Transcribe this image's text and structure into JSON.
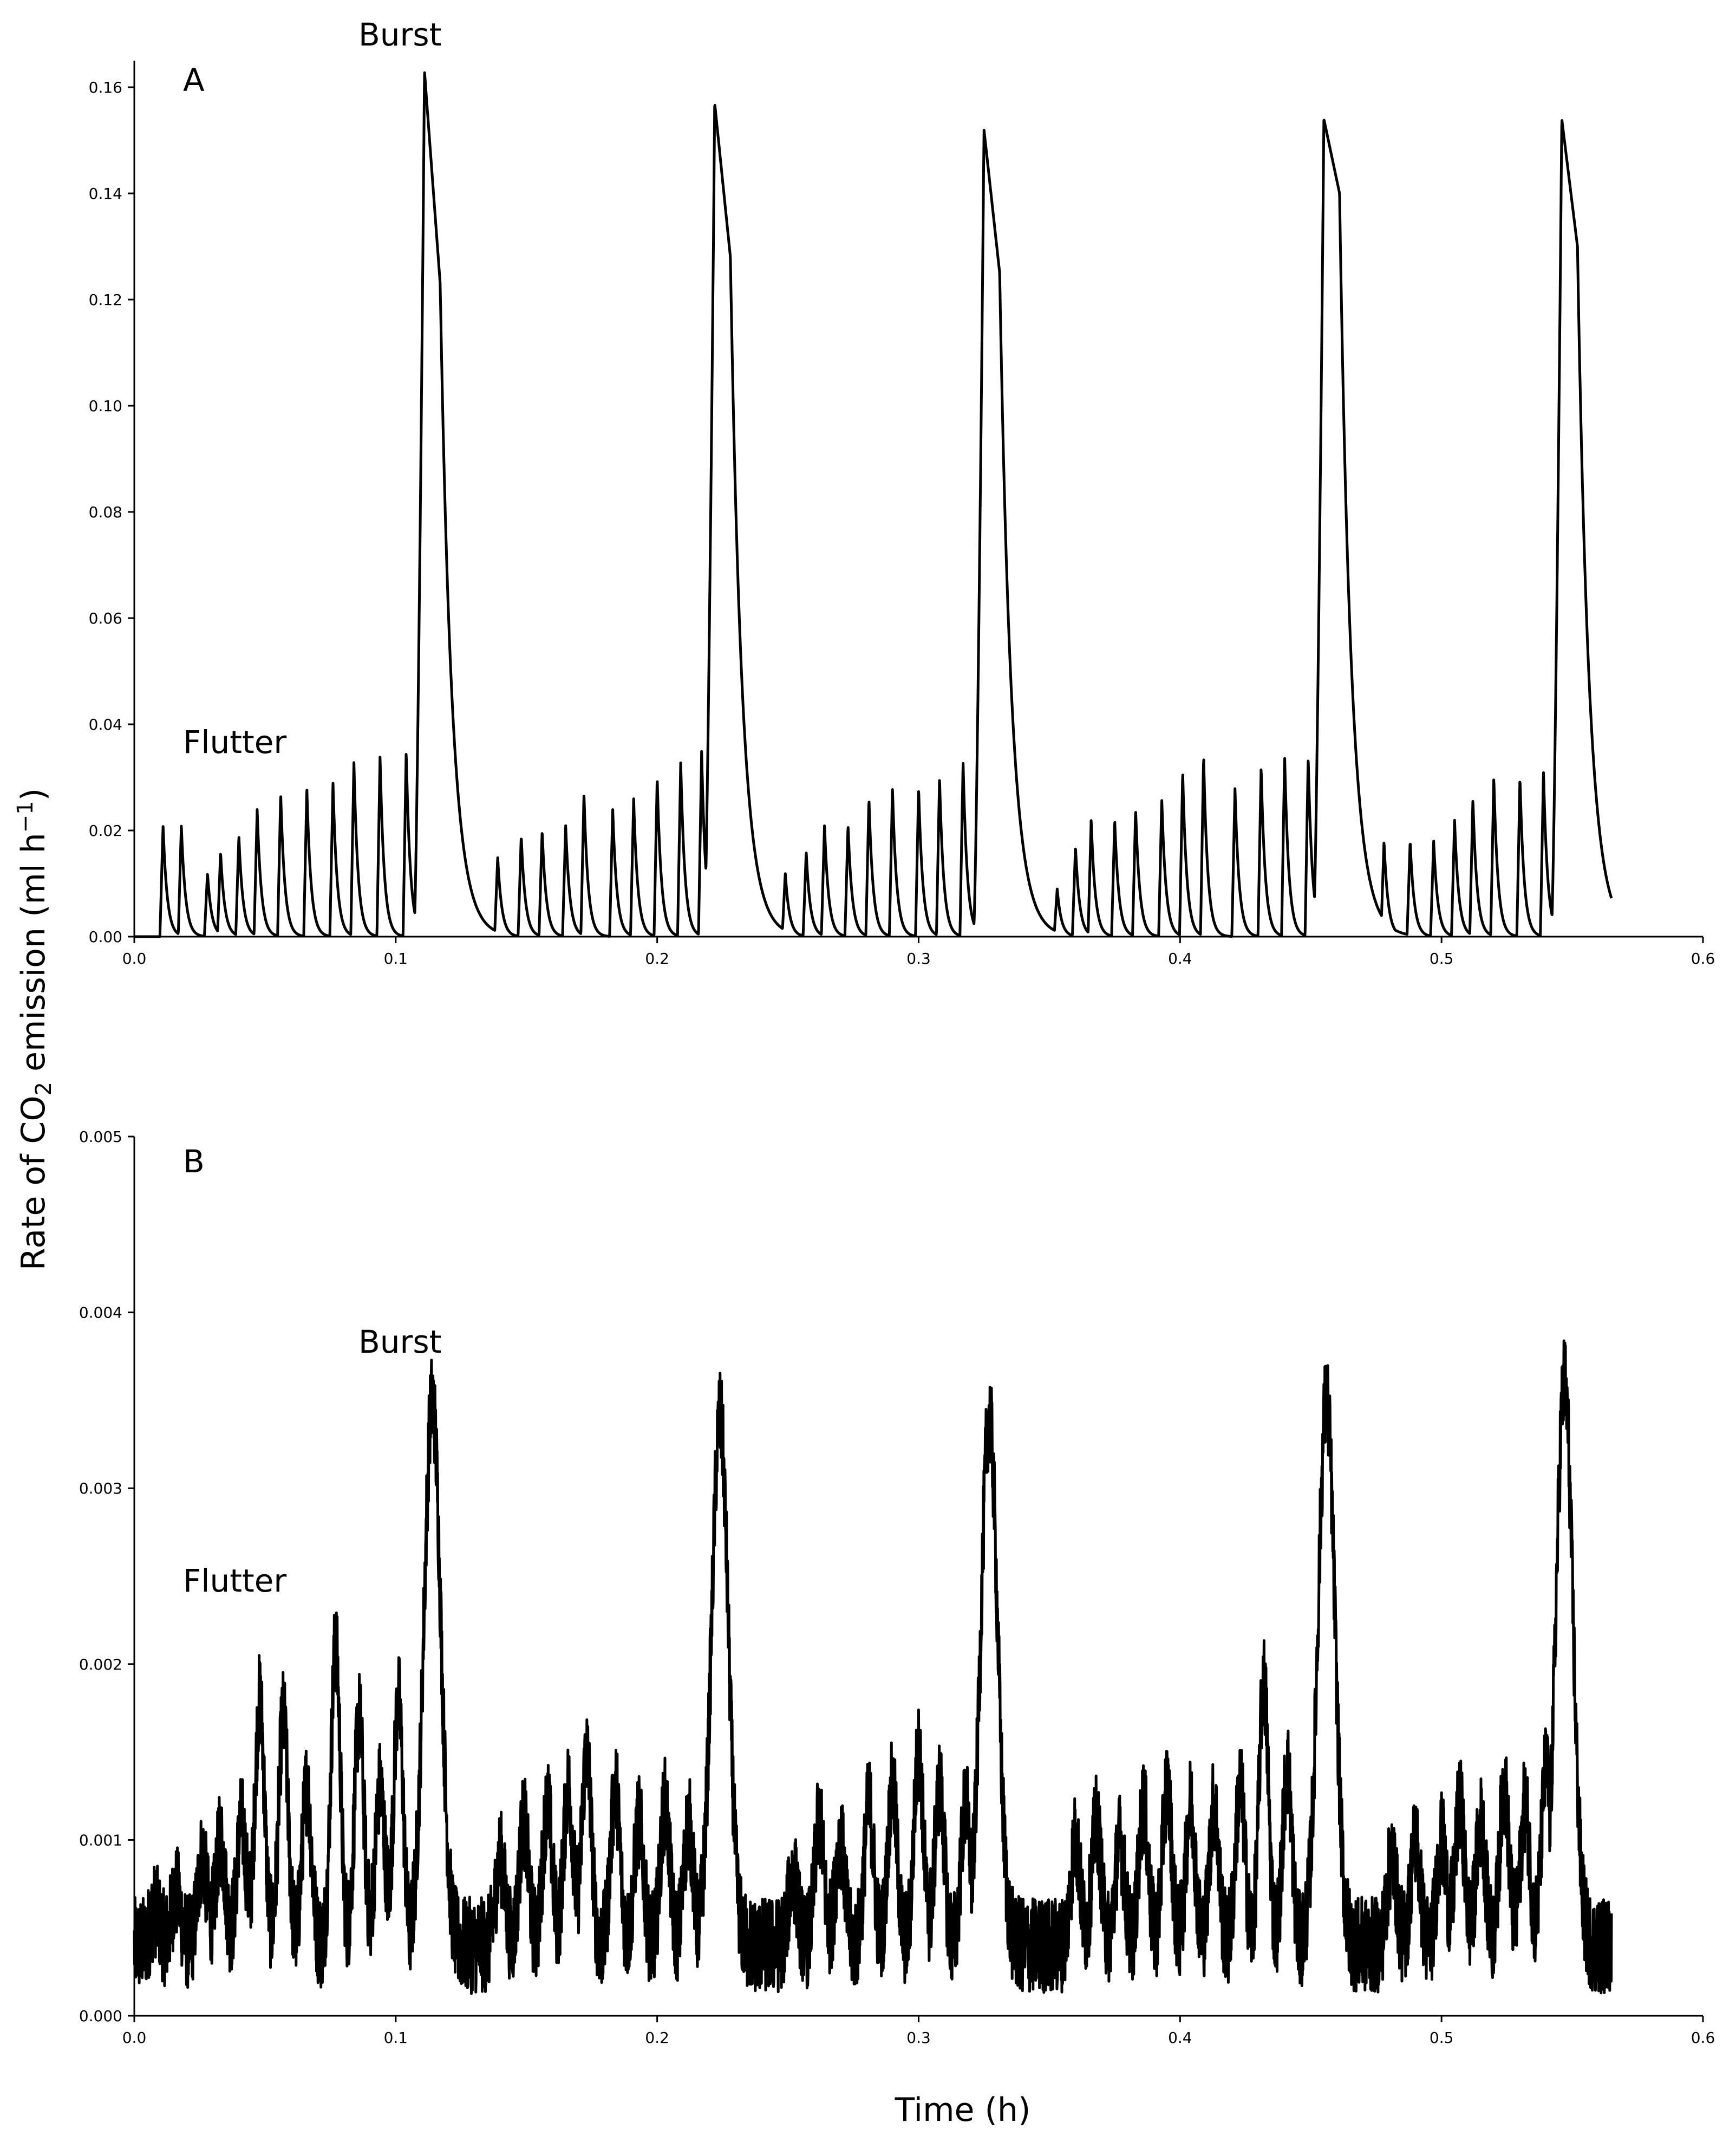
{
  "ylabel_parts": [
    "Rate of CO",
    "2",
    " emission (ml h",
    "−1",
    ")"
  ],
  "xlabel": "Time (h)",
  "chart_data": [
    {
      "type": "line",
      "panel_label": "A",
      "annotations": [
        "Burst",
        "Flutter"
      ],
      "xlim": [
        0.0,
        0.6
      ],
      "ylim": [
        0.0,
        0.165
      ],
      "x_ticks": [
        "0.0",
        "0.1",
        "0.2",
        "0.3",
        "0.4",
        "0.5",
        "0.6"
      ],
      "y_ticks": [
        "0.00",
        "0.02",
        "0.04",
        "0.06",
        "0.08",
        "0.10",
        "0.12",
        "0.14",
        "0.16"
      ],
      "y_tick_values": [
        0,
        0.02,
        0.04,
        0.06,
        0.08,
        0.1,
        0.12,
        0.14,
        0.16
      ],
      "bursts": [
        {
          "t": 0.111,
          "peak": 0.163,
          "shoulder": 0.123
        },
        {
          "t": 0.222,
          "peak": 0.157,
          "shoulder": 0.128
        },
        {
          "t": 0.325,
          "peak": 0.152,
          "shoulder": 0.125
        },
        {
          "t": 0.455,
          "peak": 0.154,
          "shoulder": 0.14
        },
        {
          "t": 0.546,
          "peak": 0.154,
          "shoulder": 0.13
        }
      ],
      "flutters": [
        [
          0.011,
          0.021
        ],
        [
          0.018,
          0.021
        ],
        [
          0.028,
          0.012
        ],
        [
          0.033,
          0.016
        ],
        [
          0.04,
          0.019
        ],
        [
          0.047,
          0.024
        ],
        [
          0.056,
          0.027
        ],
        [
          0.066,
          0.028
        ],
        [
          0.076,
          0.029
        ],
        [
          0.084,
          0.033
        ],
        [
          0.094,
          0.034
        ],
        [
          0.104,
          0.035
        ],
        [
          0.139,
          0.015
        ],
        [
          0.148,
          0.019
        ],
        [
          0.156,
          0.02
        ],
        [
          0.165,
          0.021
        ],
        [
          0.172,
          0.027
        ],
        [
          0.183,
          0.024
        ],
        [
          0.191,
          0.026
        ],
        [
          0.2,
          0.03
        ],
        [
          0.209,
          0.033
        ],
        [
          0.217,
          0.035
        ],
        [
          0.249,
          0.012
        ],
        [
          0.257,
          0.016
        ],
        [
          0.264,
          0.021
        ],
        [
          0.273,
          0.021
        ],
        [
          0.281,
          0.026
        ],
        [
          0.29,
          0.028
        ],
        [
          0.3,
          0.028
        ],
        [
          0.308,
          0.03
        ],
        [
          0.317,
          0.033
        ],
        [
          0.353,
          0.009
        ],
        [
          0.36,
          0.017
        ],
        [
          0.366,
          0.022
        ],
        [
          0.375,
          0.022
        ],
        [
          0.383,
          0.024
        ],
        [
          0.393,
          0.026
        ],
        [
          0.401,
          0.031
        ],
        [
          0.409,
          0.034
        ],
        [
          0.421,
          0.028
        ],
        [
          0.431,
          0.032
        ],
        [
          0.44,
          0.034
        ],
        [
          0.449,
          0.034
        ],
        [
          0.478,
          0.018
        ],
        [
          0.488,
          0.018
        ],
        [
          0.497,
          0.018
        ],
        [
          0.505,
          0.022
        ],
        [
          0.512,
          0.026
        ],
        [
          0.52,
          0.03
        ],
        [
          0.53,
          0.03
        ],
        [
          0.539,
          0.031
        ]
      ]
    },
    {
      "type": "line",
      "panel_label": "B",
      "annotations": [
        "Burst",
        "Flutter"
      ],
      "xlim": [
        0.0,
        0.6
      ],
      "ylim": [
        0.0,
        0.005
      ],
      "x_ticks": [
        "0.0",
        "0.1",
        "0.2",
        "0.3",
        "0.4",
        "0.5",
        "0.6"
      ],
      "y_ticks": [
        "0.000",
        "0.001",
        "0.002",
        "0.003",
        "0.004",
        "0.005"
      ],
      "y_tick_values": [
        0,
        0.001,
        0.002,
        0.003,
        0.004,
        0.005
      ],
      "bursts": [
        {
          "t": 0.114,
          "peak": 0.0035
        },
        {
          "t": 0.224,
          "peak": 0.0034
        },
        {
          "t": 0.327,
          "peak": 0.0034
        },
        {
          "t": 0.456,
          "peak": 0.0035
        },
        {
          "t": 0.547,
          "peak": 0.0036
        }
      ],
      "flutter_peaks": [
        [
          0.008,
          0.0006
        ],
        [
          0.016,
          0.0007
        ],
        [
          0.026,
          0.0009
        ],
        [
          0.033,
          0.001
        ],
        [
          0.041,
          0.0011
        ],
        [
          0.048,
          0.0018
        ],
        [
          0.057,
          0.0017
        ],
        [
          0.066,
          0.0013
        ],
        [
          0.077,
          0.0021
        ],
        [
          0.086,
          0.0017
        ],
        [
          0.094,
          0.0013
        ],
        [
          0.101,
          0.0018
        ],
        [
          0.14,
          0.0009
        ],
        [
          0.149,
          0.0011
        ],
        [
          0.158,
          0.0012
        ],
        [
          0.166,
          0.0013
        ],
        [
          0.173,
          0.0015
        ],
        [
          0.184,
          0.0013
        ],
        [
          0.193,
          0.0011
        ],
        [
          0.203,
          0.0012
        ],
        [
          0.212,
          0.0011
        ],
        [
          0.252,
          0.0008
        ],
        [
          0.262,
          0.0011
        ],
        [
          0.27,
          0.001
        ],
        [
          0.281,
          0.0012
        ],
        [
          0.29,
          0.0013
        ],
        [
          0.3,
          0.0015
        ],
        [
          0.308,
          0.0013
        ],
        [
          0.318,
          0.0012
        ],
        [
          0.36,
          0.001
        ],
        [
          0.368,
          0.0011
        ],
        [
          0.377,
          0.001
        ],
        [
          0.386,
          0.0012
        ],
        [
          0.395,
          0.0013
        ],
        [
          0.404,
          0.0012
        ],
        [
          0.413,
          0.0012
        ],
        [
          0.423,
          0.0013
        ],
        [
          0.432,
          0.0019
        ],
        [
          0.441,
          0.0014
        ],
        [
          0.481,
          0.0009
        ],
        [
          0.49,
          0.001
        ],
        [
          0.5,
          0.001
        ],
        [
          0.507,
          0.0012
        ],
        [
          0.515,
          0.0011
        ],
        [
          0.524,
          0.0013
        ],
        [
          0.532,
          0.0012
        ],
        [
          0.54,
          0.0014
        ]
      ],
      "baseline": 0.0004,
      "x_end": 0.565
    }
  ]
}
